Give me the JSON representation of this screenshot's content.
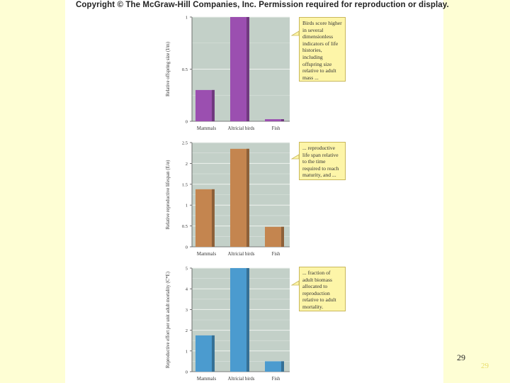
{
  "copyright": "Copyright © The McGraw-Hill Companies, Inc. Permission required for reproduction or display.",
  "slide_number": "29",
  "slide_number_ghost": "29",
  "colors": {
    "plot_bg": "#c3d0c8",
    "grid": "#eef2ee",
    "callout_bg": "#fdf5a8"
  },
  "chart_data": [
    {
      "type": "bar",
      "categories": [
        "Mammals",
        "Altricial birds",
        "Fish"
      ],
      "values": [
        0.3,
        1.0,
        0.02
      ],
      "ylabel": "Relative offspring size (I/m)",
      "ylim": [
        0,
        1
      ],
      "yticks": [
        0,
        0.5,
        1
      ],
      "ytick_labels": [
        "0",
        "0.5",
        "1"
      ],
      "color": "#9b4fb0",
      "callout": "Birds score higher in several dimensionless indicators of life histories, including offspring size relative to adult mass ..."
    },
    {
      "type": "bar",
      "categories": [
        "Mammals",
        "Altricial birds",
        "Fish"
      ],
      "values": [
        1.38,
        2.35,
        0.48
      ],
      "ylabel": "Relative reproductive lifespan (E/α)",
      "ylim": [
        0,
        2.5
      ],
      "yticks": [
        0,
        0.5,
        1,
        1.5,
        2,
        2.5
      ],
      "ytick_labels": [
        "0",
        "0.5",
        "1",
        "1.5",
        "2",
        "2.5"
      ],
      "color": "#c4854f",
      "callout": "... reproductive life span relative to the time required to reach maturity, and ..."
    },
    {
      "type": "bar",
      "categories": [
        "Mammals",
        "Altricial birds",
        "Fish"
      ],
      "values": [
        1.75,
        5.0,
        0.5
      ],
      "ylabel": "Reproductive effort per unit adult mortality (C*E)",
      "ylim": [
        0,
        5
      ],
      "yticks": [
        0,
        1,
        2,
        3,
        4,
        5
      ],
      "ytick_labels": [
        "0",
        "1",
        "2",
        "3",
        "4",
        "5"
      ],
      "color": "#4b9bcf",
      "callout": "... fraction of adult biomass allocated to reproduction relative to adult mortality."
    }
  ]
}
